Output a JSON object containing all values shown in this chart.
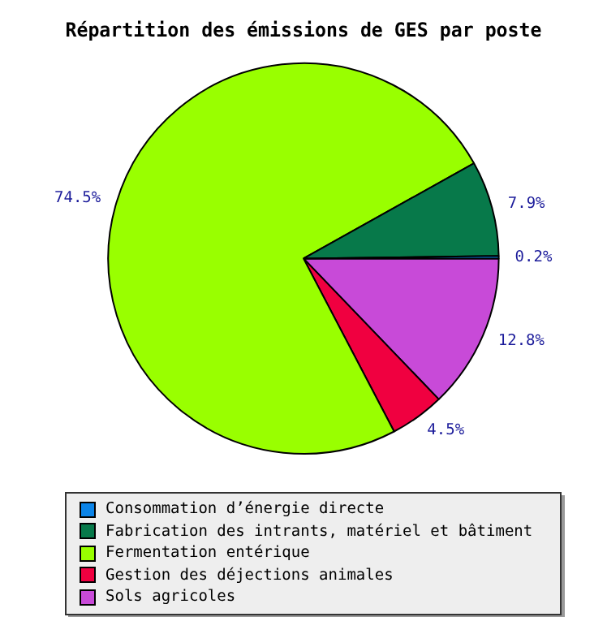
{
  "chart_data": {
    "type": "pie",
    "title": "Répartition des émissions de GES par poste",
    "categories": [
      "Consommation d’énergie directe",
      "Fabrication des intrants, matériel et bâtiment",
      "Fermentation entérique",
      "Gestion des déjections animales",
      "Sols agricoles"
    ],
    "values": [
      0.2,
      7.9,
      74.5,
      4.5,
      12.8
    ],
    "colors": [
      "#0b84e8",
      "#07794a",
      "#99ff00",
      "#f00040",
      "#c84ad8"
    ],
    "value_labels": [
      "0.2%",
      "7.9%",
      "74.5%",
      "4.5%",
      "12.8%"
    ],
    "legend": "bottom"
  }
}
